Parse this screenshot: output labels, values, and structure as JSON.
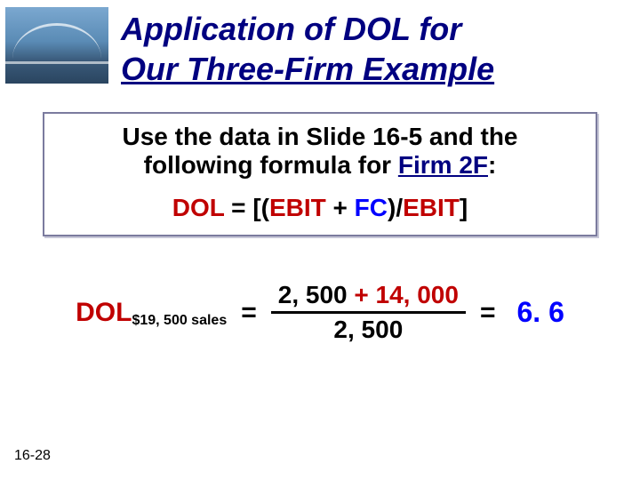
{
  "title": {
    "line1": "Application of DOL for",
    "line2": "Our Three-Firm Example",
    "color": "#000080",
    "fontsize": 36
  },
  "box": {
    "line1": "Use the data in Slide 16-5 and the",
    "line2_prefix": "following formula for ",
    "line2_firm": "Firm 2F",
    "line2_suffix": ":",
    "formula": {
      "dol": "DOL",
      "eq": " = ",
      "lb": "[(",
      "ebit1": "EBIT",
      "plus": " + ",
      "fc": "FC",
      "rb": ")",
      "slash": "/",
      "ebit2": "EBIT",
      "cb": "]"
    },
    "border_color": "#7b7b9e",
    "fontsize": 28
  },
  "calc": {
    "label_big": "DOL",
    "label_sub": "$19, 500 sales",
    "eq1": "=",
    "numerator_a": "2, 500",
    "numerator_plus": " + ",
    "numerator_b": "14, 000",
    "denominator": "2, 500",
    "eq2": "=",
    "result": "6. 6",
    "result_color": "#0000ff",
    "red": "#c00000",
    "fontsize": 30
  },
  "slide_number": "16-28",
  "background_color": "#ffffff"
}
